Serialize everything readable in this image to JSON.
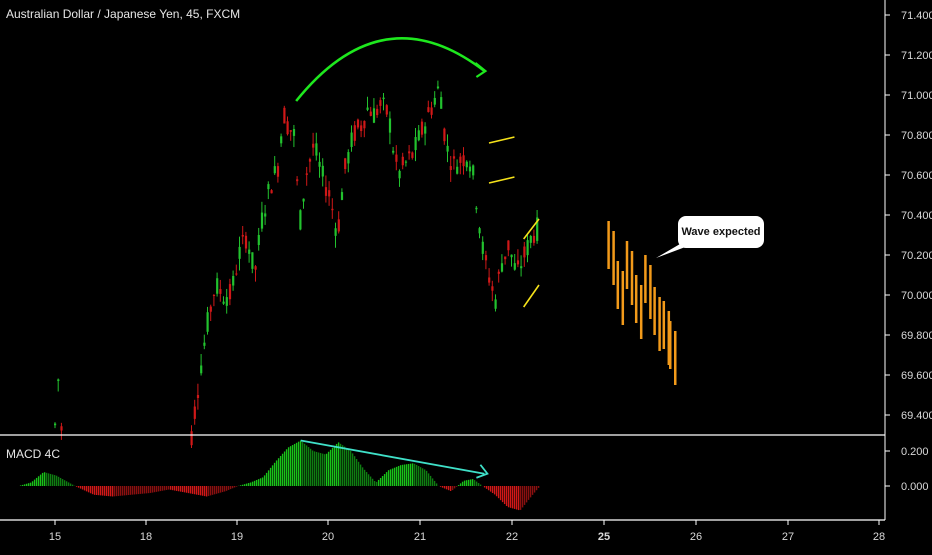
{
  "header": {
    "title": "Australian Dollar / Japanese Yen, 45, FXCM"
  },
  "indicator": {
    "label": "MACD 4C"
  },
  "annotation": {
    "callout_text": "Wave expected"
  },
  "colors": {
    "background": "#000000",
    "bull_candle": "#22c22e",
    "bear_candle": "#d01818",
    "projection": "#f29a1a",
    "pattern_lines": "#f5e21a",
    "arc_arrow": "#1ee81e",
    "divergence_line": "#3fe0c8",
    "separator": "#ffffff"
  },
  "chart_data": [
    {
      "type": "candlestick",
      "title": "Australian Dollar / Japanese Yen, 45, FXCM",
      "y_axis_ticks": [
        "71.400",
        "71.200",
        "71.000",
        "70.800",
        "70.600",
        "70.400",
        "70.200",
        "70.000",
        "69.800",
        "69.600",
        "69.400"
      ],
      "ylim": [
        69.29,
        71.43
      ],
      "x_axis_ticks": [
        "15",
        "18",
        "19",
        "20",
        "21",
        "22",
        "25",
        "26",
        "27",
        "28"
      ],
      "price_path": [
        [
          15.0,
          69.35
        ],
        [
          15.06,
          69.43
        ],
        [
          15.1,
          69.6
        ],
        [
          15.16,
          69.35
        ],
        [
          15.25,
          69.32
        ],
        [
          18.5,
          69.3
        ],
        [
          18.55,
          69.45
        ],
        [
          18.62,
          69.65
        ],
        [
          18.7,
          69.85
        ],
        [
          18.8,
          70.05
        ],
        [
          18.9,
          70.0
        ],
        [
          19.0,
          70.0
        ],
        [
          19.1,
          70.2
        ],
        [
          19.2,
          70.3
        ],
        [
          19.3,
          70.1
        ],
        [
          19.4,
          70.4
        ],
        [
          19.5,
          70.55
        ],
        [
          19.6,
          70.65
        ],
        [
          19.66,
          70.92
        ],
        [
          19.72,
          70.85
        ],
        [
          19.8,
          70.8
        ],
        [
          19.87,
          70.35
        ],
        [
          19.95,
          70.6
        ],
        [
          20.05,
          70.75
        ],
        [
          20.15,
          70.6
        ],
        [
          20.25,
          70.5
        ],
        [
          20.35,
          70.3
        ],
        [
          20.43,
          70.6
        ],
        [
          20.55,
          70.8
        ],
        [
          20.65,
          70.85
        ],
        [
          20.75,
          70.95
        ],
        [
          20.8,
          70.9
        ],
        [
          20.9,
          70.95
        ],
        [
          21.0,
          70.9
        ],
        [
          21.05,
          70.75
        ],
        [
          21.12,
          70.6
        ],
        [
          21.2,
          70.65
        ],
        [
          21.3,
          70.7
        ],
        [
          21.4,
          70.8
        ],
        [
          21.5,
          70.9
        ],
        [
          21.6,
          71.0
        ],
        [
          21.65,
          71.05
        ],
        [
          21.72,
          70.75
        ],
        [
          21.82,
          70.65
        ],
        [
          21.92,
          70.68
        ],
        [
          22.0,
          70.7
        ],
        [
          22.05,
          70.65
        ],
        [
          22.12,
          70.45
        ],
        [
          22.2,
          70.2
        ],
        [
          22.3,
          70.05
        ],
        [
          22.35,
          69.97
        ],
        [
          22.42,
          70.15
        ],
        [
          22.52,
          70.25
        ],
        [
          22.62,
          70.1
        ],
        [
          22.72,
          70.2
        ],
        [
          22.82,
          70.3
        ],
        [
          22.92,
          70.35
        ]
      ],
      "projection": {
        "label": "Wave expected",
        "points": [
          [
            25.05,
            70.25
          ],
          [
            25.15,
            70.05
          ],
          [
            25.25,
            70.15
          ],
          [
            25.35,
            69.98
          ],
          [
            25.45,
            70.08
          ],
          [
            25.55,
            69.92
          ],
          [
            25.65,
            69.85
          ],
          [
            25.72,
            69.75
          ]
        ]
      },
      "patterns": {
        "flag": [
          [
            21.75,
            70.76,
            70.56
          ],
          [
            22.08,
            70.79,
            70.59
          ]
        ],
        "wedge": [
          [
            22.38,
            70.28,
            69.94
          ],
          [
            22.88,
            70.38,
            70.05
          ]
        ]
      },
      "arc": {
        "start": [
          19.65,
          70.97
        ],
        "peak": [
          20.6,
          71.3
        ],
        "end": [
          21.7,
          71.12
        ]
      }
    },
    {
      "type": "bar",
      "title": "MACD 4C",
      "y_axis_ticks": [
        "0.200",
        "0.000"
      ],
      "ylim": [
        -0.19,
        0.29
      ],
      "shape": [
        [
          14.6,
          0.0
        ],
        [
          14.8,
          0.02
        ],
        [
          15.0,
          0.08
        ],
        [
          15.2,
          0.06
        ],
        [
          15.5,
          0.0
        ],
        [
          15.8,
          -0.05
        ],
        [
          16.1,
          -0.06
        ],
        [
          16.4,
          -0.05
        ],
        [
          16.7,
          -0.04
        ],
        [
          17.0,
          -0.02
        ],
        [
          17.3,
          -0.04
        ],
        [
          17.6,
          -0.06
        ],
        [
          17.9,
          -0.03
        ],
        [
          18.1,
          0.0
        ],
        [
          18.3,
          0.02
        ],
        [
          18.5,
          0.05
        ],
        [
          18.7,
          0.14
        ],
        [
          18.9,
          0.22
        ],
        [
          19.1,
          0.26
        ],
        [
          19.3,
          0.2
        ],
        [
          19.5,
          0.18
        ],
        [
          19.7,
          0.25
        ],
        [
          19.9,
          0.2
        ],
        [
          20.1,
          0.1
        ],
        [
          20.3,
          0.02
        ],
        [
          20.5,
          0.09
        ],
        [
          20.7,
          0.12
        ],
        [
          20.9,
          0.13
        ],
        [
          21.1,
          0.09
        ],
        [
          21.3,
          0.0
        ],
        [
          21.5,
          -0.03
        ],
        [
          21.7,
          0.03
        ],
        [
          21.85,
          0.04
        ],
        [
          22.0,
          0.0
        ],
        [
          22.2,
          -0.05
        ],
        [
          22.4,
          -0.12
        ],
        [
          22.6,
          -0.14
        ],
        [
          22.8,
          -0.05
        ],
        [
          22.92,
          0.0
        ]
      ],
      "divergence_line": [
        [
          19.7,
          0.26
        ],
        [
          21.7,
          0.07
        ]
      ]
    }
  ]
}
